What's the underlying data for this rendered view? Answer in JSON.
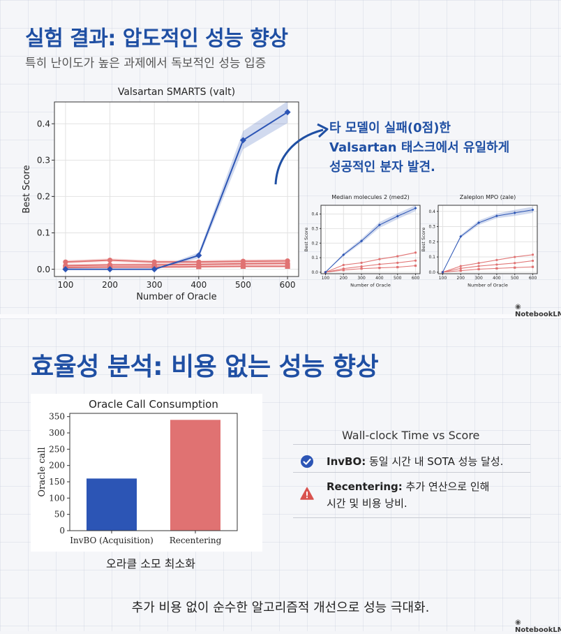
{
  "section1": {
    "title": "실험 결과: 압도적인 성능 향상",
    "subtitle": "특히 난이도가 높은 과제에서 독보적인 성능 입증",
    "callout_lines": [
      "타 모델이 실패(0점)한",
      "Valsartan 태스크에서 유일하게",
      "성공적인 분자 발견."
    ],
    "badge": "NotebookLM"
  },
  "section2": {
    "title": "효율성 분석: 비용 없는 성능 향상",
    "bar_caption": "오라클 소모 최소화",
    "wallclock_title": "Wall-clock Time vs Score",
    "invbo_label": "InvBO:",
    "invbo_text": " 동일 시간 내 SOTA 성능 달성.",
    "recenter_label": "Recentering:",
    "recenter_text_1": " 추가 연산으로 인해",
    "recenter_text_2": "시간 및 비용 낭비.",
    "bottom_text": "추가 비용 없이 순수한 알고리즘적 개선으로 성능 극대화.",
    "badge": "NotebookLM"
  },
  "colors": {
    "accent": "#1f4fa3",
    "invbo": "#2c55b5",
    "other": "#e07272",
    "warn": "#d9534f"
  },
  "chart_data": [
    {
      "type": "line",
      "title": "Valsartan SMARTS (valt)",
      "xlabel": "Number of Oracle",
      "ylabel": "Best Score",
      "x": [
        100,
        200,
        300,
        400,
        500,
        600
      ],
      "xlim": [
        75,
        625
      ],
      "ylim": [
        -0.02,
        0.46
      ],
      "xticks": [
        "100",
        "200",
        "300",
        "400",
        "500",
        "600"
      ],
      "yticks": [
        "0.0",
        "0.1",
        "0.2",
        "0.3",
        "0.4"
      ],
      "grid": true,
      "series": [
        {
          "values": [
            0.0,
            0.0,
            0.0,
            0.038,
            0.355,
            0.432
          ],
          "band": [
            0,
            0,
            0,
            0.008,
            0.025,
            0.03
          ],
          "color": "#2c55b5",
          "marker": "diamond"
        },
        {
          "values": [
            0.02,
            0.025,
            0.02,
            0.02,
            0.022,
            0.023
          ],
          "band": [
            0.005,
            0.005,
            0.005,
            0.005,
            0.005,
            0.005
          ],
          "color": "#e07272",
          "marker": "circle"
        },
        {
          "values": [
            0.01,
            0.012,
            0.012,
            0.013,
            0.015,
            0.016
          ],
          "band": [
            0.004,
            0.004,
            0.004,
            0.004,
            0.004,
            0.004
          ],
          "color": "#e07272",
          "marker": "circle"
        },
        {
          "values": [
            0.005,
            0.006,
            0.006,
            0.007,
            0.008,
            0.008
          ],
          "band": [
            0.003,
            0.003,
            0.003,
            0.003,
            0.003,
            0.003
          ],
          "color": "#e07272",
          "marker": "square"
        }
      ]
    },
    {
      "type": "line",
      "title": "Median molecules 2 (med2)",
      "xlabel": "Number of Oracle",
      "ylabel": "Best Score",
      "x": [
        100,
        200,
        300,
        400,
        500,
        600
      ],
      "xlim": [
        75,
        625
      ],
      "ylim": [
        -0.01,
        0.46
      ],
      "xticks": [
        "100",
        "200",
        "300",
        "400",
        "500",
        "600"
      ],
      "yticks": [
        "0.0",
        "0.1",
        "0.2",
        "0.3",
        "0.4"
      ],
      "grid": true,
      "series": [
        {
          "values": [
            0.0,
            0.12,
            0.215,
            0.325,
            0.385,
            0.44
          ],
          "band": [
            0,
            0.01,
            0.015,
            0.02,
            0.02,
            0.02
          ],
          "color": "#2c55b5",
          "marker": "diamond"
        },
        {
          "values": [
            0.0,
            0.05,
            0.065,
            0.09,
            0.11,
            0.135
          ],
          "band": [
            0,
            0.003,
            0.003,
            0.004,
            0.004,
            0.004
          ],
          "color": "#e07272",
          "marker": "circle"
        },
        {
          "values": [
            0.0,
            0.025,
            0.04,
            0.055,
            0.065,
            0.08
          ],
          "band": [
            0,
            0.003,
            0.003,
            0.003,
            0.003,
            0.003
          ],
          "color": "#e07272",
          "marker": "circle"
        },
        {
          "values": [
            0.0,
            0.015,
            0.025,
            0.03,
            0.035,
            0.045
          ],
          "band": [
            0,
            0.002,
            0.002,
            0.002,
            0.002,
            0.002
          ],
          "color": "#e07272",
          "marker": "square"
        }
      ]
    },
    {
      "type": "line",
      "title": "Zaleplon MPO (zale)",
      "xlabel": "Number of Oracle",
      "ylabel": "Best Score",
      "x": [
        100,
        200,
        300,
        400,
        500,
        600
      ],
      "xlim": [
        75,
        625
      ],
      "ylim": [
        -0.01,
        0.44
      ],
      "xticks": [
        "100",
        "200",
        "300",
        "400",
        "500",
        "600"
      ],
      "yticks": [
        "0.0",
        "0.1",
        "0.2",
        "0.3",
        "0.4"
      ],
      "grid": true,
      "series": [
        {
          "values": [
            0.0,
            0.235,
            0.325,
            0.37,
            0.39,
            0.41
          ],
          "band": [
            0,
            0.01,
            0.015,
            0.015,
            0.02,
            0.02
          ],
          "color": "#2c55b5",
          "marker": "diamond"
        },
        {
          "values": [
            0.0,
            0.04,
            0.06,
            0.08,
            0.1,
            0.115
          ],
          "band": [
            0,
            0.003,
            0.003,
            0.003,
            0.003,
            0.003
          ],
          "color": "#e07272",
          "marker": "circle"
        },
        {
          "values": [
            0.0,
            0.025,
            0.04,
            0.05,
            0.06,
            0.075
          ],
          "band": [
            0,
            0.003,
            0.003,
            0.003,
            0.003,
            0.003
          ],
          "color": "#e07272",
          "marker": "circle"
        },
        {
          "values": [
            0.0,
            0.01,
            0.02,
            0.025,
            0.03,
            0.035
          ],
          "band": [
            0,
            0.002,
            0.002,
            0.002,
            0.002,
            0.002
          ],
          "color": "#e07272",
          "marker": "square"
        }
      ]
    },
    {
      "type": "bar",
      "title": "Oracle Call Consumption",
      "ylabel": "Oracle call",
      "categories": [
        "InvBO (Acquisition)",
        "Recentering"
      ],
      "values": [
        160,
        340
      ],
      "colors": [
        "#2c55b5",
        "#e07272"
      ],
      "ylim": [
        0,
        360
      ],
      "yticks": [
        "0",
        "50",
        "100",
        "150",
        "200",
        "250",
        "300",
        "350"
      ],
      "grid": false
    }
  ]
}
